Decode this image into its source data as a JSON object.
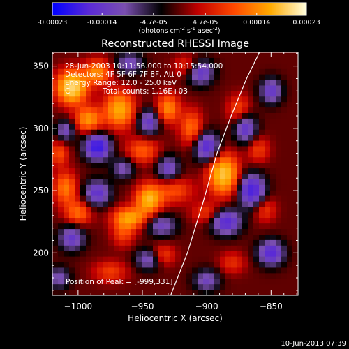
{
  "chart_data": {
    "type": "heatmap",
    "title": "Reconstructed RHESSI Image",
    "xlabel": "Heliocentric X (arcsec)",
    "ylabel": "Heliocentric Y (arcsec)",
    "xlim": [
      -1020,
      -829
    ],
    "ylim": [
      166,
      361
    ],
    "x_ticks": [
      -1000,
      -950,
      -900,
      -850
    ],
    "y_ticks": [
      200,
      250,
      300,
      350
    ],
    "colorbar": {
      "range": [
        -0.00023,
        0.00023
      ],
      "tick_values": [
        -0.00023,
        -0.00014,
        -4.7e-05,
        4.7e-05,
        0.00014,
        0.00023
      ],
      "tick_labels": [
        "-0.00023",
        "-0.00014",
        "-4.7e-05",
        "4.7e-05",
        "0.00014",
        "0.00023"
      ],
      "unit_parts": [
        "(photons cm",
        "-2",
        " s",
        "-1",
        " asec",
        "-2",
        ")"
      ],
      "colors": [
        "#0000ff",
        "#5a2ad6",
        "#7a4fb0",
        "#000000",
        "#c00000",
        "#ff4800",
        "#ffaa00",
        "#ffffe0"
      ]
    },
    "annotations": {
      "time_range": "28-Jun-2003 10:11:56.000 to 10:15:54.000",
      "detectors": "Detectors: 4F 5F 6F 7F 8F, Att 0",
      "energy_range": "Energy Range: 12.0 - 25.0 keV",
      "total_counts": "Total counts: 1.16E+03",
      "clean_prefix": "C",
      "peak_position": "Position of Peak = [-999,331]"
    },
    "sources": [
      {
        "x": -1005,
        "y": 333,
        "amp": 1.0,
        "sx": 8,
        "sy": 9
      },
      {
        "x": -985,
        "y": 345,
        "amp": 0.55,
        "sx": 7,
        "sy": 7
      },
      {
        "x": -968,
        "y": 315,
        "amp": 0.7,
        "sx": 8,
        "sy": 10
      },
      {
        "x": -992,
        "y": 307,
        "amp": 0.6,
        "sx": 7,
        "sy": 7
      },
      {
        "x": -930,
        "y": 316,
        "amp": 0.55,
        "sx": 6,
        "sy": 8
      },
      {
        "x": -912,
        "y": 300,
        "amp": 0.45,
        "sx": 6,
        "sy": 10
      },
      {
        "x": -887,
        "y": 263,
        "amp": 0.85,
        "sx": 8,
        "sy": 11
      },
      {
        "x": -950,
        "y": 282,
        "amp": 0.4,
        "sx": 9,
        "sy": 7
      },
      {
        "x": -925,
        "y": 250,
        "amp": 0.35,
        "sx": 10,
        "sy": 7
      },
      {
        "x": -945,
        "y": 243,
        "amp": 0.75,
        "sx": 7,
        "sy": 8
      },
      {
        "x": -960,
        "y": 228,
        "amp": 0.65,
        "sx": 9,
        "sy": 6
      },
      {
        "x": -1010,
        "y": 252,
        "amp": 0.5,
        "sx": 6,
        "sy": 9
      },
      {
        "x": -1000,
        "y": 232,
        "amp": 0.45,
        "sx": 7,
        "sy": 7
      },
      {
        "x": -935,
        "y": 198,
        "amp": 0.35,
        "sx": 7,
        "sy": 6
      },
      {
        "x": -900,
        "y": 232,
        "amp": 0.3,
        "sx": 8,
        "sy": 6
      },
      {
        "x": -875,
        "y": 315,
        "amp": 0.35,
        "sx": 6,
        "sy": 8
      },
      {
        "x": -860,
        "y": 283,
        "amp": 0.3,
        "sx": 6,
        "sy": 7
      },
      {
        "x": -975,
        "y": 185,
        "amp": 0.3,
        "sx": 9,
        "sy": 6
      },
      {
        "x": -855,
        "y": 235,
        "amp": 0.3,
        "sx": 6,
        "sy": 7
      },
      {
        "x": -880,
        "y": 192,
        "amp": 0.25,
        "sx": 7,
        "sy": 6
      },
      {
        "x": -915,
        "y": 350,
        "amp": 0.3,
        "sx": 7,
        "sy": 6
      },
      {
        "x": -1015,
        "y": 280,
        "amp": 0.35,
        "sx": 5,
        "sy": 7
      },
      {
        "x": -965,
        "y": 215,
        "amp": 0.3,
        "sx": 6,
        "sy": 7
      },
      {
        "x": -985,
        "y": 285,
        "amp": -0.9,
        "sx": 7,
        "sy": 7
      },
      {
        "x": -945,
        "y": 305,
        "amp": -0.55,
        "sx": 6,
        "sy": 7
      },
      {
        "x": -985,
        "y": 248,
        "amp": -0.6,
        "sx": 7,
        "sy": 7
      },
      {
        "x": -930,
        "y": 268,
        "amp": -0.5,
        "sx": 6,
        "sy": 7
      },
      {
        "x": -935,
        "y": 222,
        "amp": -0.45,
        "sx": 8,
        "sy": 6
      },
      {
        "x": -900,
        "y": 285,
        "amp": -0.7,
        "sx": 7,
        "sy": 8
      },
      {
        "x": -865,
        "y": 250,
        "amp": -0.8,
        "sx": 7,
        "sy": 9
      },
      {
        "x": -885,
        "y": 225,
        "amp": -0.7,
        "sx": 8,
        "sy": 7
      },
      {
        "x": -870,
        "y": 300,
        "amp": -0.6,
        "sx": 6,
        "sy": 8
      },
      {
        "x": -905,
        "y": 345,
        "amp": -0.6,
        "sx": 7,
        "sy": 7
      },
      {
        "x": -960,
        "y": 352,
        "amp": -0.45,
        "sx": 7,
        "sy": 6
      },
      {
        "x": -1010,
        "y": 298,
        "amp": -0.45,
        "sx": 5,
        "sy": 6
      },
      {
        "x": -1005,
        "y": 212,
        "amp": -0.55,
        "sx": 7,
        "sy": 7
      },
      {
        "x": -945,
        "y": 195,
        "amp": -0.5,
        "sx": 7,
        "sy": 6
      },
      {
        "x": -850,
        "y": 200,
        "amp": -0.7,
        "sx": 7,
        "sy": 7
      },
      {
        "x": -850,
        "y": 330,
        "amp": -0.55,
        "sx": 6,
        "sy": 7
      },
      {
        "x": -900,
        "y": 178,
        "amp": -0.45,
        "sx": 7,
        "sy": 6
      },
      {
        "x": -965,
        "y": 268,
        "amp": -0.4,
        "sx": 6,
        "sy": 6
      },
      {
        "x": -1015,
        "y": 180,
        "amp": -0.4,
        "sx": 6,
        "sy": 6
      }
    ],
    "limb_curve": {
      "x": [
        -928,
        -915,
        -903,
        -892,
        -881,
        -869,
        -859
      ],
      "y": [
        166,
        200,
        240,
        280,
        310,
        340,
        361
      ]
    }
  },
  "footer": {
    "timestamp": "10-Jun-2013 07:39"
  }
}
